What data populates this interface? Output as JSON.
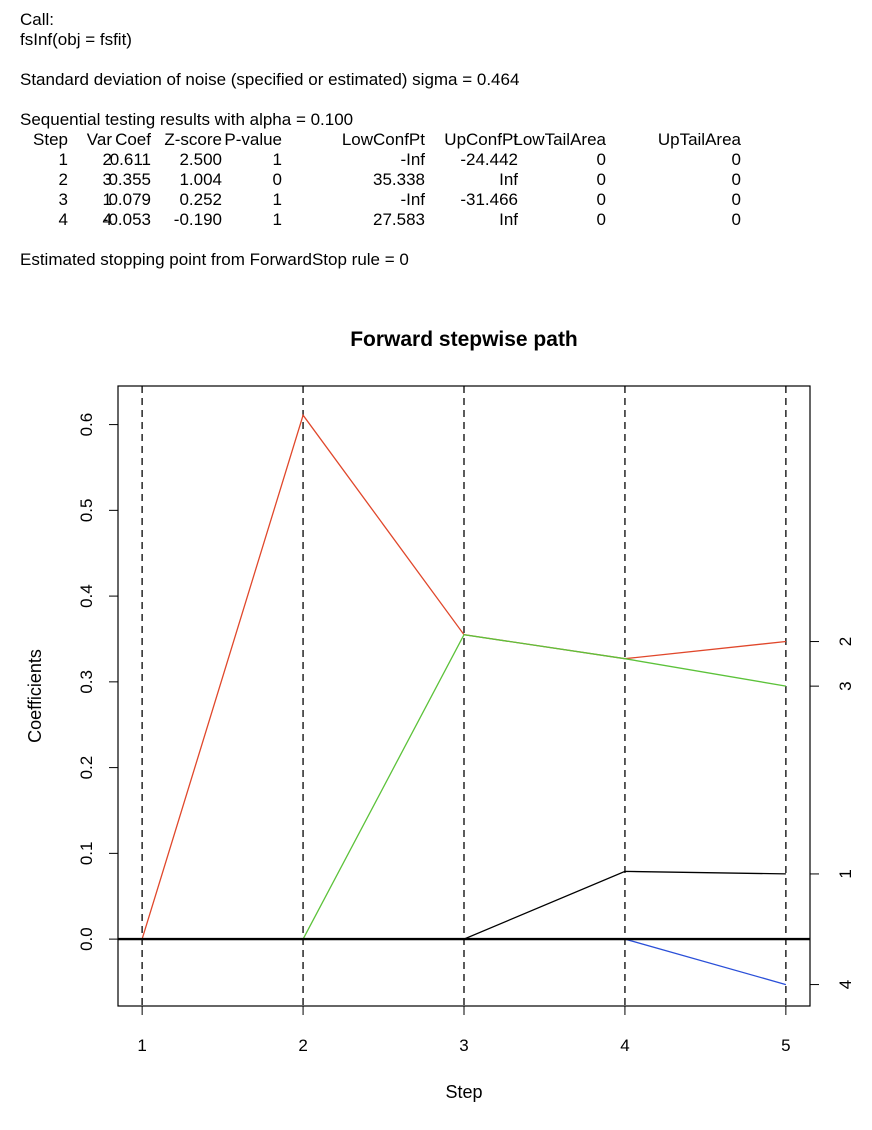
{
  "console": {
    "call_label": "Call:",
    "call_expr": "fsInf(obj = fsfit)",
    "sigma_line": "Standard deviation of noise (specified or estimated) sigma = 0.464",
    "alpha_line": "Sequential testing results with alpha = 0.100",
    "table": {
      "headers": [
        "Step",
        "Var",
        "Coef",
        "Z-score",
        "P-value",
        "LowConfPt",
        "UpConfPt",
        "LowTailArea",
        "UpTailArea"
      ],
      "rows": [
        [
          "1",
          "2",
          "0.611",
          "2.500",
          "1",
          "-Inf",
          "-24.442",
          "0",
          "0"
        ],
        [
          "2",
          "3",
          "0.355",
          "1.004",
          "0",
          "35.338",
          "Inf",
          "0",
          "0"
        ],
        [
          "3",
          "1",
          "0.079",
          "0.252",
          "1",
          "-Inf",
          "-31.466",
          "0",
          "0"
        ],
        [
          "4",
          "4",
          "-0.053",
          "-0.190",
          "1",
          "27.583",
          "Inf",
          "0",
          "0"
        ]
      ]
    },
    "stop_line": "Estimated stopping point from ForwardStop rule = 0"
  },
  "chart_data": {
    "type": "line",
    "title": "Forward stepwise path",
    "xlabel": "Step",
    "ylabel": "Coefficients",
    "x": [
      1,
      2,
      3,
      4,
      5
    ],
    "xlim": [
      0.85,
      5.15
    ],
    "ylim": [
      -0.078,
      0.645
    ],
    "x_ticks": [
      "1",
      "2",
      "3",
      "4",
      "5"
    ],
    "y_ticks": [
      "0.0",
      "0.1",
      "0.2",
      "0.3",
      "0.4",
      "0.5",
      "0.6"
    ],
    "grid": false,
    "vertical_dashed_lines_at": [
      1,
      2,
      3,
      4,
      5
    ],
    "zero_line": true,
    "series": [
      {
        "name": "2",
        "color": "#e0472b",
        "values": [
          0,
          0.611,
          0.355,
          0.327,
          0.347
        ]
      },
      {
        "name": "3",
        "color": "#5cc23a",
        "values": [
          0,
          0,
          0.355,
          0.327,
          0.295
        ]
      },
      {
        "name": "1",
        "color": "#000000",
        "values": [
          0,
          0,
          0,
          0.079,
          0.076
        ]
      },
      {
        "name": "4",
        "color": "#2a4fd8",
        "values": [
          0,
          0,
          0,
          0,
          -0.053
        ]
      }
    ],
    "right_axis_labels": [
      {
        "label": "2",
        "value": 0.347
      },
      {
        "label": "3",
        "value": 0.295
      },
      {
        "label": "1",
        "value": 0.076
      },
      {
        "label": "4",
        "value": -0.053
      }
    ]
  }
}
